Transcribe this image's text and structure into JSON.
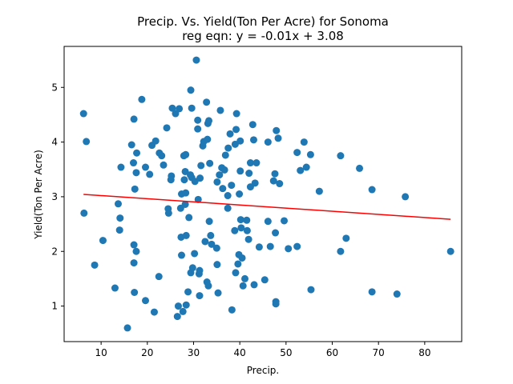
{
  "chart_data": {
    "type": "scatter",
    "title": "Precip. Vs. Yield(Ton Per Acre) for Sonoma",
    "subtitle": "reg eqn: y = -0.01x + 3.08",
    "xlabel": "Precip.",
    "ylabel": "Yield(Ton Per Acre)",
    "xlim": [
      2,
      88
    ],
    "ylim": [
      0.35,
      5.75
    ],
    "xticks": [
      10,
      20,
      30,
      40,
      50,
      60,
      70,
      80
    ],
    "yticks": [
      1,
      2,
      3,
      4,
      5
    ],
    "grid": false,
    "colors": {
      "points": "#1f77b4",
      "regression": "#ff0000"
    },
    "regression": {
      "slope": -0.00573,
      "intercept": 3.078,
      "x_range": [
        6.2,
        85.6
      ]
    },
    "points": [
      [
        6.2,
        4.52
      ],
      [
        6.8,
        4.01
      ],
      [
        6.3,
        2.7
      ],
      [
        8.6,
        1.75
      ],
      [
        10.4,
        2.2
      ],
      [
        13.0,
        1.33
      ],
      [
        13.7,
        2.87
      ],
      [
        14.1,
        2.61
      ],
      [
        14.0,
        2.39
      ],
      [
        14.3,
        3.54
      ],
      [
        15.7,
        0.6
      ],
      [
        16.6,
        3.95
      ],
      [
        17.1,
        4.42
      ],
      [
        17.0,
        3.62
      ],
      [
        17.3,
        3.14
      ],
      [
        17.1,
        2.12
      ],
      [
        17.6,
        2.0
      ],
      [
        17.1,
        1.79
      ],
      [
        17.2,
        1.25
      ],
      [
        17.6,
        3.44
      ],
      [
        17.7,
        3.8
      ],
      [
        18.8,
        4.78
      ],
      [
        19.6,
        3.54
      ],
      [
        19.6,
        1.1
      ],
      [
        20.5,
        3.41
      ],
      [
        21.0,
        3.94
      ],
      [
        21.8,
        4.02
      ],
      [
        21.5,
        0.89
      ],
      [
        22.6,
        3.8
      ],
      [
        22.5,
        1.54
      ],
      [
        23.1,
        3.75
      ],
      [
        23.5,
        3.58
      ],
      [
        24.2,
        4.26
      ],
      [
        24.5,
        2.78
      ],
      [
        24.6,
        2.7
      ],
      [
        25.2,
        3.38
      ],
      [
        25.4,
        4.62
      ],
      [
        25.1,
        3.31
      ],
      [
        26.1,
        4.52
      ],
      [
        26.9,
        4.61
      ],
      [
        26.5,
        0.81
      ],
      [
        26.7,
        1.0
      ],
      [
        27.4,
        3.05
      ],
      [
        27.3,
        2.26
      ],
      [
        27.2,
        2.79
      ],
      [
        27.4,
        1.93
      ],
      [
        27.7,
        0.9
      ],
      [
        27.9,
        3.75
      ],
      [
        28.3,
        3.77
      ],
      [
        28.2,
        3.46
      ],
      [
        28.0,
        3.31
      ],
      [
        28.3,
        3.07
      ],
      [
        28.2,
        2.86
      ],
      [
        28.4,
        2.29
      ],
      [
        28.4,
        1.02
      ],
      [
        28.8,
        1.26
      ],
      [
        29.0,
        2.62
      ],
      [
        29.4,
        4.95
      ],
      [
        29.6,
        4.62
      ],
      [
        29.3,
        3.4
      ],
      [
        29.6,
        3.35
      ],
      [
        29.4,
        1.61
      ],
      [
        29.8,
        1.7
      ],
      [
        30.2,
        1.96
      ],
      [
        30.3,
        3.28
      ],
      [
        30.6,
        5.5
      ],
      [
        30.9,
        4.4
      ],
      [
        30.9,
        4.24
      ],
      [
        31.0,
        2.95
      ],
      [
        31.2,
        1.59
      ],
      [
        31.3,
        1.65
      ],
      [
        31.3,
        1.19
      ],
      [
        31.6,
        3.57
      ],
      [
        31.4,
        3.34
      ],
      [
        32.0,
        3.93
      ],
      [
        32.2,
        4.01
      ],
      [
        32.5,
        2.18
      ],
      [
        32.8,
        4.73
      ],
      [
        32.9,
        1.44
      ],
      [
        33.1,
        4.34
      ],
      [
        33.3,
        4.39
      ],
      [
        33.0,
        4.05
      ],
      [
        33.5,
        3.61
      ],
      [
        33.4,
        2.55
      ],
      [
        33.2,
        1.37
      ],
      [
        33.7,
        2.29
      ],
      [
        33.9,
        2.13
      ],
      [
        35.0,
        2.06
      ],
      [
        35.1,
        1.76
      ],
      [
        35.3,
        1.24
      ],
      [
        35.1,
        3.27
      ],
      [
        35.6,
        3.4
      ],
      [
        35.8,
        4.58
      ],
      [
        36.1,
        3.53
      ],
      [
        36.3,
        3.15
      ],
      [
        36.7,
        3.49
      ],
      [
        36.9,
        3.76
      ],
      [
        37.4,
        2.79
      ],
      [
        37.4,
        3.02
      ],
      [
        37.5,
        3.89
      ],
      [
        37.9,
        4.15
      ],
      [
        38.2,
        3.21
      ],
      [
        38.3,
        0.93
      ],
      [
        38.9,
        2.38
      ],
      [
        39.0,
        3.96
      ],
      [
        39.2,
        4.23
      ],
      [
        39.3,
        4.52
      ],
      [
        39.1,
        1.61
      ],
      [
        39.6,
        1.77
      ],
      [
        39.8,
        1.94
      ],
      [
        39.9,
        3.05
      ],
      [
        40.1,
        4.02
      ],
      [
        40.1,
        3.47
      ],
      [
        40.3,
        2.43
      ],
      [
        40.2,
        2.58
      ],
      [
        40.5,
        1.88
      ],
      [
        40.7,
        1.37
      ],
      [
        41.1,
        1.5
      ],
      [
        41.5,
        2.57
      ],
      [
        41.6,
        2.38
      ],
      [
        41.9,
        2.22
      ],
      [
        42.0,
        3.43
      ],
      [
        42.3,
        3.62
      ],
      [
        42.3,
        3.18
      ],
      [
        42.8,
        4.32
      ],
      [
        43.0,
        4.04
      ],
      [
        43.1,
        1.39
      ],
      [
        43.3,
        3.25
      ],
      [
        43.6,
        3.62
      ],
      [
        44.2,
        2.08
      ],
      [
        45.4,
        1.48
      ],
      [
        46.1,
        2.55
      ],
      [
        46.1,
        4.0
      ],
      [
        46.6,
        2.09
      ],
      [
        47.3,
        3.29
      ],
      [
        47.6,
        3.42
      ],
      [
        47.7,
        2.34
      ],
      [
        47.8,
        1.08
      ],
      [
        47.8,
        1.04
      ],
      [
        47.9,
        4.21
      ],
      [
        48.3,
        4.07
      ],
      [
        48.6,
        3.24
      ],
      [
        49.6,
        2.56
      ],
      [
        50.5,
        2.05
      ],
      [
        52.4,
        2.09
      ],
      [
        52.4,
        3.81
      ],
      [
        53.1,
        3.48
      ],
      [
        53.9,
        4.0
      ],
      [
        54.4,
        3.54
      ],
      [
        55.3,
        3.77
      ],
      [
        55.4,
        1.3
      ],
      [
        57.2,
        3.1
      ],
      [
        61.8,
        3.75
      ],
      [
        61.8,
        2.0
      ],
      [
        63.0,
        2.24
      ],
      [
        65.9,
        3.52
      ],
      [
        68.6,
        3.13
      ],
      [
        68.6,
        1.26
      ],
      [
        74.0,
        1.22
      ],
      [
        75.8,
        3.0
      ],
      [
        85.6,
        2.0
      ]
    ]
  }
}
